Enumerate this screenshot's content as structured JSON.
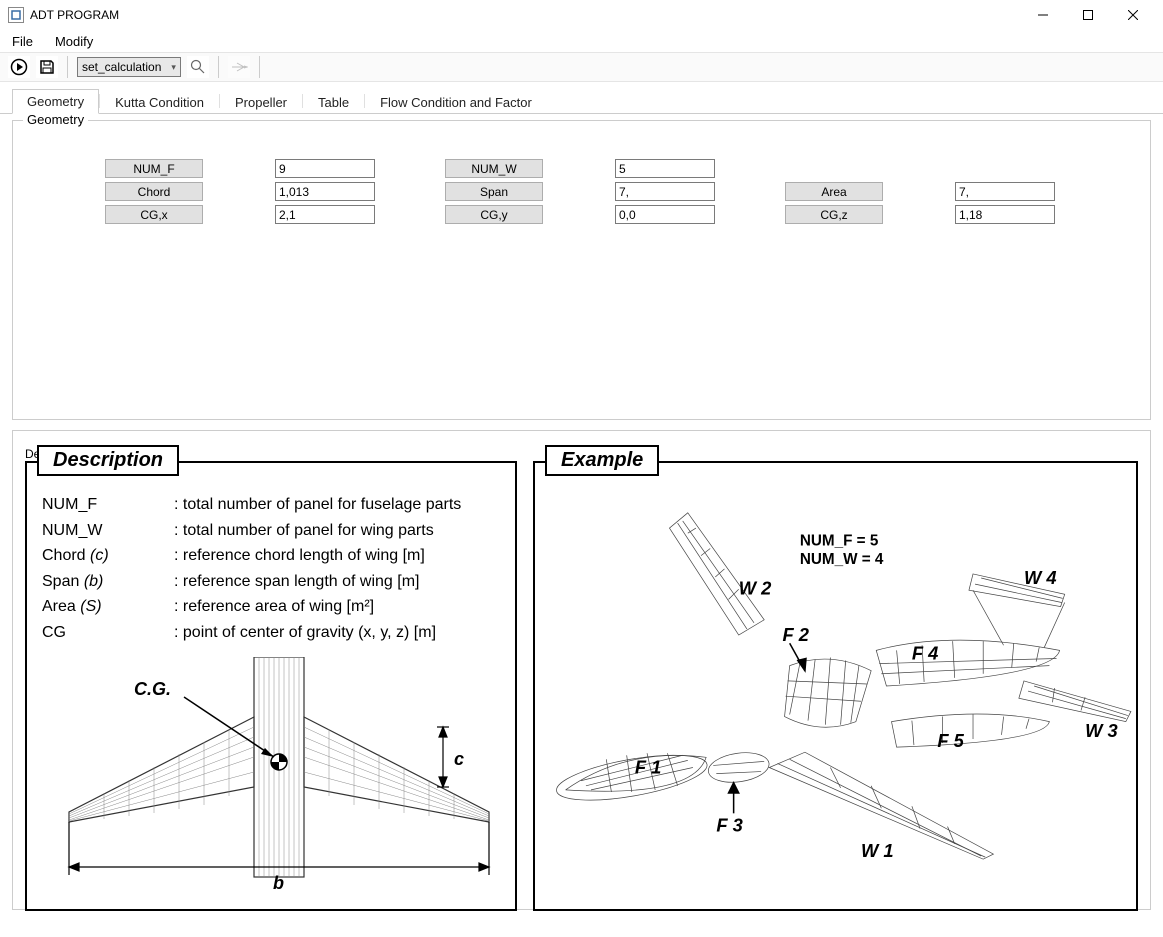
{
  "window": {
    "title": "ADT PROGRAM",
    "icon_color": "#3a6ea5",
    "btn_min": "—",
    "btn_max": "□",
    "btn_close": "✕"
  },
  "menubar": {
    "items": [
      "File",
      "Modify"
    ]
  },
  "toolbar": {
    "dropdown_value": "set_calculation"
  },
  "tabs": {
    "items": [
      "Geometry",
      "Kutta Condition",
      "Propeller",
      "Table",
      "Flow Condition and Factor"
    ],
    "active_index": 0
  },
  "geometry": {
    "legend": "Geometry",
    "rows": [
      [
        {
          "label": "NUM_F",
          "value": "9"
        },
        {
          "label": "NUM_W",
          "value": "5"
        },
        null
      ],
      [
        {
          "label": "Chord",
          "value": "1,013"
        },
        {
          "label": "Span",
          "value": "7,"
        },
        {
          "label": "Area",
          "value": "7,"
        }
      ],
      [
        {
          "label": "CG,x",
          "value": "2,1"
        },
        {
          "label": "CG,y",
          "value": "0,0"
        },
        {
          "label": "CG,z",
          "value": "1,18"
        }
      ]
    ]
  },
  "description_section": {
    "legend": "Description",
    "panel_title": "Description",
    "example_title": "Example",
    "definitions": [
      {
        "term": "NUM_F",
        "sym": "",
        "def": ": total number of panel for fuselage parts"
      },
      {
        "term": "NUM_W",
        "sym": "",
        "def": ": total number of panel for wing parts"
      },
      {
        "term": "Chord",
        "sym": "(c)",
        "def": ": reference chord length of wing [m]"
      },
      {
        "term": "Span",
        "sym": "(b)",
        "def": ": reference span length of wing [m]"
      },
      {
        "term": "Area",
        "sym": "(S)",
        "def": ": reference area of wing [m²]"
      },
      {
        "term": "CG",
        "sym": "",
        "def": ": point of center of gravity (x, y, z) [m]"
      }
    ],
    "diagram": {
      "cg_label": "C.G.",
      "chord_label": "c",
      "span_label": "b"
    },
    "example": {
      "num_f_text": "NUM_F  = 5",
      "num_w_text": "NUM_W = 4",
      "labels": {
        "W1": "W 1",
        "W2": "W 2",
        "W3": "W 3",
        "W4": "W 4",
        "F1": "F 1",
        "F2": "F 2",
        "F3": "F 3",
        "F4": "F 4",
        "F5": "F 5"
      }
    }
  },
  "colors": {
    "window_bg": "#ffffff",
    "border": "#cccccc",
    "field_label_bg": "#e1e1e1",
    "field_label_border": "#adadad",
    "input_border": "#7a7a7a",
    "toolbar_bg": "#fafafa",
    "wire": "#555555"
  }
}
